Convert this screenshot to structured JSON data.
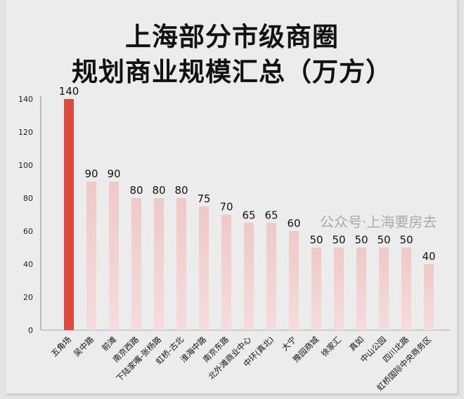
{
  "chart_data": {
    "type": "bar",
    "title": [
      "上海部分市级商圈",
      "规划商业规模汇总（万方）"
    ],
    "categories": [
      "五角场",
      "吴中路",
      "前滩",
      "南京西路",
      "下陆家嘴-张杨路",
      "虹桥-古北",
      "淮海中路",
      "南京东路",
      "北外滩商业中心",
      "中环(真北)",
      "大宁",
      "豫园商城",
      "徐家汇",
      "真如",
      "中山公园",
      "四川北路",
      "虹桥国际中央商务区"
    ],
    "values": [
      140,
      90,
      90,
      80,
      80,
      80,
      75,
      70,
      65,
      65,
      60,
      50,
      50,
      50,
      50,
      50,
      40
    ],
    "ylim": [
      0,
      140
    ],
    "yticks": [
      0,
      20,
      40,
      60,
      80,
      100,
      120,
      140
    ],
    "grid": false,
    "colors": {
      "highlight": "#db4a3f",
      "bar_top": "#efc9c8",
      "bar_bottom": "#f5dcdc"
    },
    "watermark": "公众号·上海要房去"
  }
}
